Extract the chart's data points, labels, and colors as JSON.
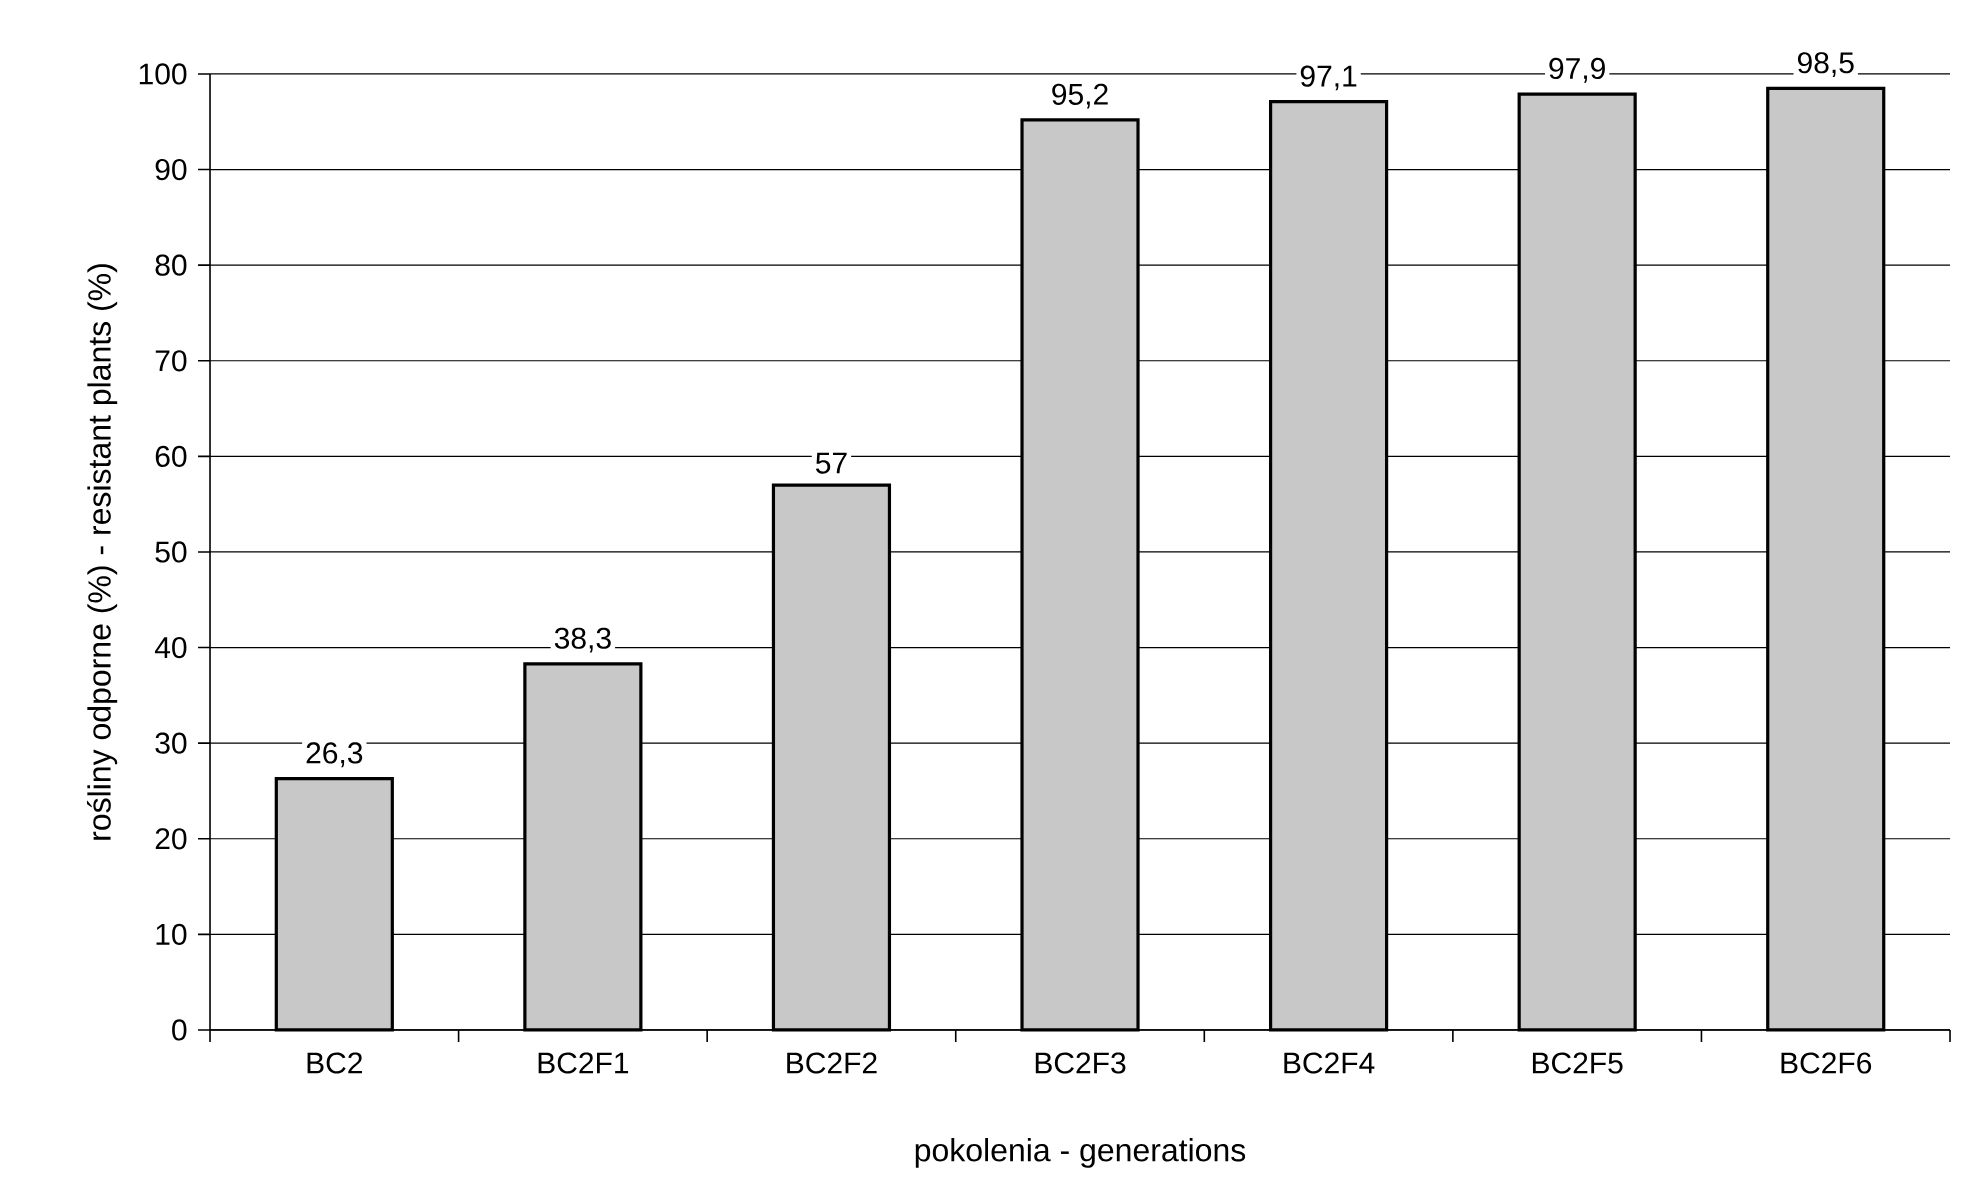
{
  "chart_data": {
    "type": "bar",
    "xlabel": "pokolenia - generations",
    "ylabel": "rośliny odporne (%) -  resistant plants (%)",
    "categories": [
      "BC2",
      "BC2F1",
      "BC2F2",
      "BC2F3",
      "BC2F4",
      "BC2F5",
      "BC2F6"
    ],
    "values": [
      26.3,
      38.3,
      57,
      95.2,
      97.1,
      97.9,
      98.5
    ],
    "value_labels": [
      "26,3",
      "38,3",
      "57",
      "95,2",
      "97,1",
      "97,9",
      "98,5"
    ],
    "color": "#c8c8c8",
    "ylim": [
      0,
      100
    ],
    "yticks": [
      0,
      10,
      20,
      30,
      40,
      50,
      60,
      70,
      80,
      90,
      100
    ],
    "grid": "y"
  }
}
